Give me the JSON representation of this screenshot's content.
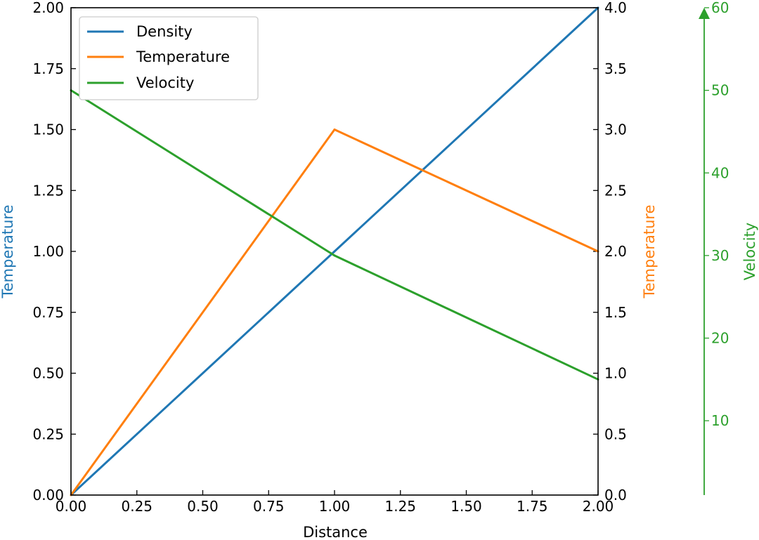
{
  "chart_data": {
    "type": "line",
    "xlabel": "Distance",
    "xlim": [
      0,
      2
    ],
    "x_ticks": [
      "0.00",
      "0.25",
      "0.50",
      "0.75",
      "1.00",
      "1.25",
      "1.50",
      "1.75",
      "2.00"
    ],
    "axes": {
      "left": {
        "label": "Temperature",
        "color": "#1f77b4",
        "ylim": [
          0,
          2
        ],
        "ticks": [
          "0.00",
          "0.25",
          "0.50",
          "0.75",
          "1.00",
          "1.25",
          "1.50",
          "1.75",
          "2.00"
        ]
      },
      "right1": {
        "label": "Temperature",
        "color": "#ff7f0e",
        "ylim": [
          0,
          4
        ],
        "ticks": [
          "0.0",
          "0.5",
          "1.0",
          "1.5",
          "2.0",
          "2.5",
          "3.0",
          "3.5",
          "4.0"
        ]
      },
      "right2": {
        "label": "Velocity",
        "color": "#2ca02c",
        "ylim": [
          1,
          60
        ],
        "ticks": [
          "10",
          "20",
          "30",
          "40",
          "50",
          "60"
        ]
      }
    },
    "series": [
      {
        "name": "Density",
        "axis": "left",
        "color": "#1f77b4",
        "x": [
          0,
          1,
          2
        ],
        "y": [
          0,
          1,
          2
        ]
      },
      {
        "name": "Temperature",
        "axis": "right1",
        "color": "#ff7f0e",
        "x": [
          0,
          1,
          2
        ],
        "y": [
          0,
          3,
          2
        ]
      },
      {
        "name": "Velocity",
        "axis": "right2",
        "color": "#2ca02c",
        "x": [
          0,
          1,
          2
        ],
        "y": [
          50,
          30,
          15
        ]
      }
    ],
    "legend": {
      "position": "top-left",
      "entries": [
        "Density",
        "Temperature",
        "Velocity"
      ]
    },
    "grid": false
  }
}
